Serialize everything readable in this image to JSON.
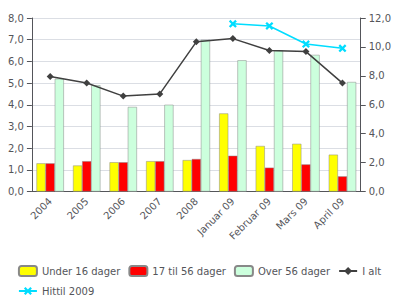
{
  "chart_data": {
    "type": "bar",
    "categories": [
      "2004",
      "2005",
      "2006",
      "2007",
      "2008",
      "Januar 09",
      "Februar 09",
      "Mars 09",
      "April 09"
    ],
    "series": [
      {
        "name": "Under 16 dager",
        "type": "bar",
        "color": "#ffff00",
        "values": [
          1.3,
          1.2,
          1.35,
          1.4,
          1.45,
          3.6,
          2.1,
          2.2,
          1.7
        ]
      },
      {
        "name": "17 til 56 dager",
        "type": "bar",
        "color": "#ff0000",
        "values": [
          1.3,
          1.4,
          1.35,
          1.4,
          1.5,
          1.65,
          1.1,
          1.25,
          0.7
        ]
      },
      {
        "name": "Over 56 dager",
        "type": "bar",
        "color": "#ccffdd",
        "values": [
          5.2,
          4.9,
          3.9,
          4.0,
          7.0,
          6.05,
          6.5,
          6.3,
          5.05
        ]
      },
      {
        "name": "I alt",
        "type": "line",
        "color": "#404040",
        "marker": "diamond",
        "values": [
          5.3,
          5.0,
          4.4,
          4.5,
          6.9,
          7.05,
          6.5,
          6.45,
          5.0
        ]
      },
      {
        "name": "Hittil 2009",
        "type": "line",
        "color": "#00ddff",
        "marker": "x",
        "axis": "y2",
        "values": [
          null,
          null,
          null,
          null,
          null,
          11.6,
          11.45,
          10.2,
          9.9
        ]
      }
    ],
    "ylim": [
      0.0,
      8.0
    ],
    "yticks": [
      {
        "value": 0.0,
        "label": "0,0"
      },
      {
        "value": 1.0,
        "label": "1,0"
      },
      {
        "value": 2.0,
        "label": "2,0"
      },
      {
        "value": 3.0,
        "label": "3,0"
      },
      {
        "value": 4.0,
        "label": "4,0"
      },
      {
        "value": 5.0,
        "label": "5,0"
      },
      {
        "value": 6.0,
        "label": "6,0"
      },
      {
        "value": 7.0,
        "label": "7,0"
      },
      {
        "value": 8.0,
        "label": "8,0"
      }
    ],
    "y2lim": [
      0.0,
      12.0
    ],
    "y2ticks": [
      {
        "value": 0.0,
        "label": "0,0"
      },
      {
        "value": 2.0,
        "label": "2,0"
      },
      {
        "value": 4.0,
        "label": "4,0"
      },
      {
        "value": 6.0,
        "label": "6,0"
      },
      {
        "value": 8.0,
        "label": "8,0"
      },
      {
        "value": 10.0,
        "label": "10,0"
      },
      {
        "value": 12.0,
        "label": "12,0"
      }
    ],
    "grid": true,
    "legend": "bottom"
  }
}
